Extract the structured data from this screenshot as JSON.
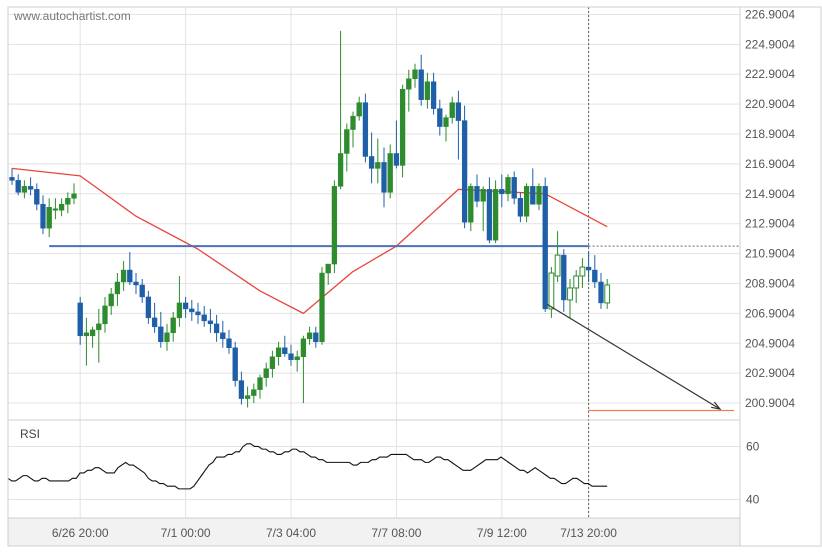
{
  "watermark": "www.autochartist.com",
  "chart_data": [
    {
      "type": "candlestick",
      "panel": "price",
      "ylim": [
        199.9,
        227.4
      ],
      "yticks": [
        "226.9004",
        "224.9004",
        "222.9004",
        "220.9004",
        "218.9004",
        "216.9004",
        "214.9004",
        "212.9004",
        "210.9004",
        "208.9004",
        "206.9004",
        "204.9004",
        "202.9004",
        "200.9004"
      ],
      "xticks": [
        "6/26 20:00",
        "7/1 00:00",
        "7/3 04:00",
        "7/7 08:00",
        "7/9 12:00",
        "7/13 20:00"
      ],
      "colors": {
        "up": "#2e8b2e",
        "down": "#1f5fa8",
        "ma": "#e8453c",
        "support": "#4a72b8",
        "target": "#f08050",
        "arrow": "#333333"
      },
      "candles": [
        [
          216.0,
          216.6,
          215.5,
          215.8
        ],
        [
          215.8,
          216.2,
          214.8,
          215.0
        ],
        [
          215.0,
          215.8,
          214.6,
          215.4
        ],
        [
          215.4,
          216.0,
          214.8,
          215.2
        ],
        [
          215.2,
          215.6,
          213.8,
          214.2
        ],
        [
          214.2,
          214.8,
          212.2,
          212.6
        ],
        [
          212.6,
          214.6,
          212.0,
          214.0
        ],
        [
          213.8,
          214.6,
          213.2,
          213.9
        ],
        [
          213.8,
          214.6,
          213.4,
          214.2
        ],
        [
          214.2,
          215.0,
          213.6,
          214.6
        ],
        [
          214.6,
          215.6,
          214.2,
          214.9
        ],
        [
          207.6,
          208.0,
          204.8,
          205.4
        ],
        [
          205.4,
          206.6,
          203.4,
          205.6
        ],
        [
          205.4,
          206.0,
          204.6,
          205.8
        ],
        [
          205.8,
          207.2,
          203.6,
          206.2
        ],
        [
          206.2,
          208.0,
          205.6,
          207.4
        ],
        [
          207.4,
          208.6,
          206.8,
          208.2
        ],
        [
          208.2,
          209.6,
          207.4,
          209.0
        ],
        [
          209.0,
          210.4,
          208.4,
          209.8
        ],
        [
          209.8,
          211.0,
          208.8,
          209.0
        ],
        [
          209.0,
          209.6,
          208.2,
          208.8
        ],
        [
          208.8,
          209.2,
          207.6,
          208.0
        ],
        [
          208.0,
          208.4,
          206.2,
          206.6
        ],
        [
          206.6,
          207.6,
          205.6,
          206.0
        ],
        [
          206.0,
          207.0,
          204.6,
          205.0
        ],
        [
          205.0,
          206.2,
          204.4,
          205.6
        ],
        [
          205.6,
          207.0,
          205.0,
          206.6
        ],
        [
          206.6,
          209.4,
          206.0,
          207.6
        ],
        [
          207.6,
          208.0,
          206.6,
          207.2
        ],
        [
          207.2,
          207.8,
          206.4,
          207.0
        ],
        [
          207.0,
          207.6,
          206.2,
          206.8
        ],
        [
          206.8,
          207.4,
          206.0,
          206.4
        ],
        [
          206.4,
          207.2,
          205.6,
          206.2
        ],
        [
          206.2,
          206.8,
          205.0,
          205.6
        ],
        [
          205.6,
          206.4,
          204.6,
          205.2
        ],
        [
          205.2,
          205.8,
          204.2,
          204.6
        ],
        [
          204.6,
          205.0,
          202.0,
          202.4
        ],
        [
          202.4,
          203.0,
          200.8,
          201.2
        ],
        [
          201.2,
          202.0,
          200.6,
          201.4
        ],
        [
          201.4,
          202.2,
          200.9,
          201.8
        ],
        [
          201.8,
          202.8,
          201.2,
          202.6
        ],
        [
          202.6,
          203.6,
          202.0,
          203.2
        ],
        [
          203.2,
          204.4,
          202.6,
          204.0
        ],
        [
          204.0,
          205.0,
          203.4,
          204.6
        ],
        [
          204.6,
          205.4,
          204.0,
          204.2
        ],
        [
          204.2,
          204.8,
          203.4,
          203.8
        ],
        [
          203.8,
          204.4,
          203.0,
          204.0
        ],
        [
          204.0,
          205.4,
          200.9,
          205.2
        ],
        [
          205.2,
          206.0,
          204.8,
          205.6
        ],
        [
          205.6,
          206.0,
          204.6,
          205.0
        ],
        [
          205.0,
          210.0,
          204.8,
          209.6
        ],
        [
          209.6,
          210.2,
          208.8,
          210.2
        ],
        [
          210.2,
          215.8,
          209.6,
          215.4
        ],
        [
          215.4,
          225.8,
          215.2,
          217.6
        ],
        [
          217.6,
          219.6,
          216.4,
          219.2
        ],
        [
          219.2,
          220.4,
          218.0,
          220.1
        ],
        [
          220.1,
          221.4,
          219.8,
          221.0
        ],
        [
          221.0,
          221.6,
          217.0,
          217.4
        ],
        [
          217.4,
          219.0,
          215.6,
          216.6
        ],
        [
          216.6,
          218.6,
          215.6,
          217.0
        ],
        [
          217.0,
          218.0,
          214.0,
          215.0
        ],
        [
          215.0,
          218.2,
          214.6,
          217.6
        ],
        [
          217.6,
          219.8,
          216.6,
          216.8
        ],
        [
          216.8,
          222.2,
          216.0,
          221.9
        ],
        [
          221.9,
          223.2,
          220.4,
          222.6
        ],
        [
          222.6,
          223.6,
          222.0,
          223.2
        ],
        [
          223.2,
          224.2,
          220.8,
          221.2
        ],
        [
          221.2,
          223.0,
          220.6,
          222.4
        ],
        [
          222.4,
          223.0,
          220.2,
          220.6
        ],
        [
          220.6,
          221.2,
          218.8,
          219.4
        ],
        [
          219.4,
          220.2,
          218.4,
          220.0
        ],
        [
          220.0,
          221.4,
          219.6,
          221.0
        ],
        [
          221.0,
          221.8,
          217.2,
          219.8
        ],
        [
          219.8,
          220.8,
          212.6,
          213.0
        ],
        [
          213.0,
          215.6,
          212.4,
          215.4
        ],
        [
          215.4,
          216.2,
          214.0,
          214.4
        ],
        [
          214.4,
          215.4,
          212.4,
          215.2
        ],
        [
          215.2,
          216.0,
          211.6,
          211.8
        ],
        [
          211.8,
          215.8,
          211.6,
          215.2
        ],
        [
          215.2,
          216.2,
          214.0,
          214.9
        ],
        [
          214.9,
          216.2,
          214.4,
          216.0
        ],
        [
          216.0,
          216.4,
          214.2,
          214.6
        ],
        [
          214.6,
          215.0,
          213.0,
          213.4
        ],
        [
          213.4,
          215.6,
          213.0,
          215.4
        ],
        [
          215.4,
          216.6,
          214.4,
          214.2
        ],
        [
          214.2,
          215.6,
          213.8,
          215.4
        ],
        [
          215.4,
          216.0,
          207.0,
          207.2
        ],
        [
          207.2,
          210.0,
          206.6,
          209.6
        ],
        [
          209.4,
          212.4,
          209.0,
          210.8
        ],
        [
          210.8,
          211.2,
          207.0,
          207.8
        ],
        [
          207.8,
          209.2,
          206.6,
          208.6
        ],
        [
          208.6,
          209.8,
          207.6,
          209.4
        ],
        [
          209.4,
          210.6,
          208.6,
          210.0
        ],
        [
          210.0,
          211.0,
          209.0,
          209.8
        ],
        [
          209.8,
          210.8,
          208.6,
          209.0
        ],
        [
          209.0,
          209.6,
          207.2,
          207.6
        ],
        [
          207.6,
          209.2,
          207.2,
          208.8
        ]
      ],
      "moving_average": [
        [
          0,
          216.6
        ],
        [
          11,
          216.1
        ],
        [
          20,
          213.4
        ],
        [
          30,
          211.2
        ],
        [
          40,
          208.4
        ],
        [
          47,
          206.9
        ],
        [
          55,
          209.7
        ],
        [
          62,
          211.4
        ],
        [
          72,
          215.2
        ],
        [
          86,
          214.9
        ],
        [
          96,
          212.7
        ]
      ],
      "support_level": {
        "value": 211.4
      },
      "target_level": {
        "value": 200.4
      },
      "forecast_arrow": {
        "from": [
          86,
          207.5
        ],
        "to": [
          102,
          200.5
        ]
      }
    },
    {
      "type": "line",
      "panel": "rsi",
      "title": "RSI",
      "ylim": [
        33,
        70
      ],
      "yticks": [
        "60",
        "40"
      ],
      "values": [
        48,
        47,
        47,
        48,
        49,
        49,
        48,
        47,
        47,
        48,
        48,
        47,
        47,
        47,
        47,
        47,
        47,
        48,
        48,
        50,
        50,
        51,
        51,
        52,
        52,
        51,
        50,
        50,
        50,
        52,
        53,
        54,
        53,
        53,
        52,
        51,
        50,
        48,
        47,
        47,
        46,
        46,
        45,
        45,
        45,
        44,
        44,
        44,
        44,
        45,
        47,
        49,
        51,
        53,
        54,
        56,
        56,
        56,
        57,
        57,
        58,
        58,
        60,
        61,
        61,
        60,
        60,
        59,
        59,
        58,
        58,
        57,
        57,
        58,
        58,
        59,
        59,
        58,
        58,
        57,
        56,
        56,
        55,
        55,
        54,
        54,
        54,
        54,
        54,
        54,
        54,
        53,
        53,
        54,
        54,
        54,
        55,
        55,
        56,
        56,
        56,
        57,
        57,
        57,
        57,
        57,
        56,
        55,
        55,
        55,
        54,
        54,
        55,
        56,
        56,
        55,
        55,
        54,
        53,
        52,
        51,
        51,
        51,
        52,
        53,
        54,
        55,
        55,
        55,
        55,
        56,
        55,
        54,
        53,
        52,
        51,
        51,
        50,
        51,
        52,
        51,
        50,
        49,
        48,
        48,
        47,
        46,
        46,
        47,
        48,
        48,
        47,
        46,
        46,
        45,
        45,
        45,
        45,
        45
      ]
    }
  ]
}
